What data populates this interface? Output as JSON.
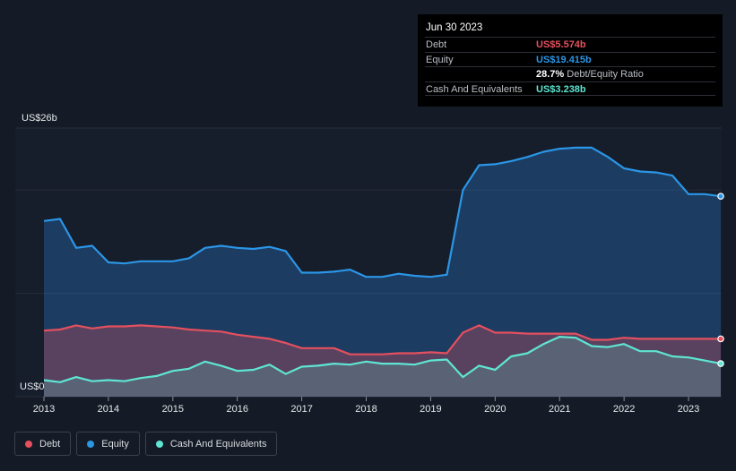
{
  "tooltip": {
    "date": "Jun 30 2023",
    "rows": [
      {
        "label": "Debt",
        "value": "US$5.574b",
        "color": "#e4505e"
      },
      {
        "label": "Equity",
        "value": "US$19.415b",
        "color": "#2b96e6"
      },
      {
        "label": "",
        "value": "28.7%",
        "sub": "Debt/Equity Ratio",
        "color": "#ffffff"
      },
      {
        "label": "Cash And Equivalents",
        "value": "US$3.238b",
        "color": "#5ee6d2"
      }
    ]
  },
  "legend": [
    {
      "label": "Debt",
      "color": "#e4505e"
    },
    {
      "label": "Equity",
      "color": "#2b96e6"
    },
    {
      "label": "Cash And Equivalents",
      "color": "#5ee6d2"
    }
  ],
  "chart_data": {
    "type": "area",
    "ylabel_top": "US$26b",
    "ylabel_bottom": "US$0",
    "ylim": [
      0,
      26
    ],
    "xlim": [
      2013,
      2023.5
    ],
    "xticks": [
      "2013",
      "2014",
      "2015",
      "2016",
      "2017",
      "2018",
      "2019",
      "2020",
      "2021",
      "2022",
      "2023"
    ],
    "grid": true,
    "legend_position": "bottom-left",
    "series": [
      {
        "name": "Equity",
        "color": "#2b96e6",
        "x": [
          2013.0,
          2013.25,
          2013.5,
          2013.75,
          2014.0,
          2014.25,
          2014.5,
          2014.75,
          2015.0,
          2015.25,
          2015.5,
          2015.75,
          2016.0,
          2016.25,
          2016.5,
          2016.75,
          2017.0,
          2017.25,
          2017.5,
          2017.75,
          2018.0,
          2018.25,
          2018.5,
          2018.75,
          2019.0,
          2019.25,
          2019.5,
          2019.75,
          2020.0,
          2020.25,
          2020.5,
          2020.75,
          2021.0,
          2021.25,
          2021.5,
          2021.75,
          2022.0,
          2022.25,
          2022.5,
          2022.75,
          2023.0,
          2023.25,
          2023.5
        ],
        "values": [
          17.0,
          17.2,
          14.4,
          14.6,
          13.0,
          12.9,
          13.1,
          13.1,
          13.1,
          13.4,
          14.4,
          14.6,
          14.4,
          14.3,
          14.5,
          14.1,
          12.0,
          12.0,
          12.1,
          12.3,
          11.6,
          11.6,
          11.9,
          11.7,
          11.6,
          11.8,
          20.0,
          22.4,
          22.5,
          22.8,
          23.2,
          23.7,
          24.0,
          24.1,
          24.1,
          23.2,
          22.1,
          21.8,
          21.7,
          21.4,
          19.6,
          19.6,
          19.4
        ]
      },
      {
        "name": "Debt",
        "color": "#e4505e",
        "x": [
          2013.0,
          2013.25,
          2013.5,
          2013.75,
          2014.0,
          2014.25,
          2014.5,
          2014.75,
          2015.0,
          2015.25,
          2015.5,
          2015.75,
          2016.0,
          2016.25,
          2016.5,
          2016.75,
          2017.0,
          2017.25,
          2017.5,
          2017.75,
          2018.0,
          2018.25,
          2018.5,
          2018.75,
          2019.0,
          2019.25,
          2019.5,
          2019.75,
          2020.0,
          2020.25,
          2020.5,
          2020.75,
          2021.0,
          2021.25,
          2021.5,
          2021.75,
          2022.0,
          2022.25,
          2022.5,
          2022.75,
          2023.0,
          2023.25,
          2023.5
        ],
        "values": [
          6.4,
          6.5,
          6.9,
          6.6,
          6.8,
          6.8,
          6.9,
          6.8,
          6.7,
          6.5,
          6.4,
          6.3,
          6.0,
          5.8,
          5.6,
          5.2,
          4.7,
          4.7,
          4.7,
          4.1,
          4.1,
          4.1,
          4.2,
          4.2,
          4.3,
          4.2,
          6.2,
          6.9,
          6.2,
          6.2,
          6.1,
          6.1,
          6.1,
          6.1,
          5.5,
          5.5,
          5.7,
          5.6,
          5.6,
          5.6,
          5.6,
          5.6,
          5.6
        ]
      },
      {
        "name": "Cash And Equivalents",
        "color": "#5ee6d2",
        "x": [
          2013.0,
          2013.25,
          2013.5,
          2013.75,
          2014.0,
          2014.25,
          2014.5,
          2014.75,
          2015.0,
          2015.25,
          2015.5,
          2015.75,
          2016.0,
          2016.25,
          2016.5,
          2016.75,
          2017.0,
          2017.25,
          2017.5,
          2017.75,
          2018.0,
          2018.25,
          2018.5,
          2018.75,
          2019.0,
          2019.25,
          2019.5,
          2019.75,
          2020.0,
          2020.25,
          2020.5,
          2020.75,
          2021.0,
          2021.25,
          2021.5,
          2021.75,
          2022.0,
          2022.25,
          2022.5,
          2022.75,
          2023.0,
          2023.25,
          2023.5
        ],
        "values": [
          1.6,
          1.4,
          1.9,
          1.5,
          1.6,
          1.5,
          1.8,
          2.0,
          2.5,
          2.7,
          3.4,
          3.0,
          2.5,
          2.6,
          3.1,
          2.2,
          2.9,
          3.0,
          3.2,
          3.1,
          3.4,
          3.2,
          3.2,
          3.1,
          3.5,
          3.6,
          1.9,
          3.0,
          2.6,
          3.9,
          4.2,
          5.1,
          5.8,
          5.7,
          4.9,
          4.8,
          5.1,
          4.4,
          4.4,
          3.9,
          3.8,
          3.5,
          3.2
        ]
      }
    ]
  }
}
